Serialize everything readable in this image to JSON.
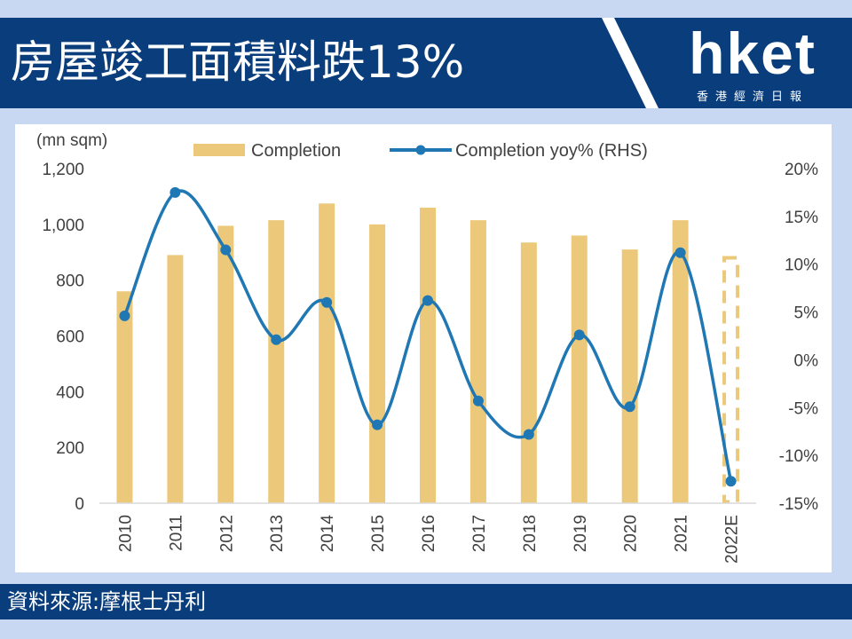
{
  "header": {
    "title": "房屋竣工面積料跌13%",
    "logo_main": "hket",
    "logo_sub": "香港經濟日報"
  },
  "footer": {
    "source": "資料來源:摩根士丹利"
  },
  "colors": {
    "band": "#0a3d7c",
    "bar": "#ecc97a",
    "line": "#1f77b4",
    "background": "#c9d8f2"
  },
  "chart_data": {
    "type": "bar+line",
    "y_unit_label": "(mn sqm)",
    "categories": [
      "2010",
      "2011",
      "2012",
      "2013",
      "2014",
      "2015",
      "2016",
      "2017",
      "2018",
      "2019",
      "2020",
      "2021",
      "2022E"
    ],
    "series": [
      {
        "name": "Completion",
        "type": "bar",
        "axis": "left",
        "values": [
          760,
          890,
          995,
          1015,
          1075,
          1000,
          1060,
          1015,
          935,
          960,
          910,
          1015,
          885
        ],
        "projected_last": true
      },
      {
        "name": "Completion yoy% (RHS)",
        "type": "line",
        "axis": "right",
        "values": [
          4.6,
          17.5,
          11.5,
          2.1,
          6.0,
          -6.8,
          6.2,
          -4.3,
          -7.8,
          2.6,
          -4.9,
          11.2,
          -12.7
        ]
      }
    ],
    "left_axis": {
      "ylim": [
        0,
        1200
      ],
      "ticks": [
        0,
        200,
        400,
        600,
        800,
        1000,
        1200
      ],
      "tick_labels": [
        "0",
        "200",
        "400",
        "600",
        "800",
        "1,000",
        "1,200"
      ]
    },
    "right_axis": {
      "ylim": [
        -15,
        20
      ],
      "ticks": [
        -15,
        -10,
        -5,
        0,
        5,
        10,
        15,
        20
      ],
      "tick_labels": [
        "-15%",
        "-10%",
        "-5%",
        "0%",
        "5%",
        "10%",
        "15%",
        "20%"
      ]
    },
    "legend_position": "top",
    "grid": false
  }
}
